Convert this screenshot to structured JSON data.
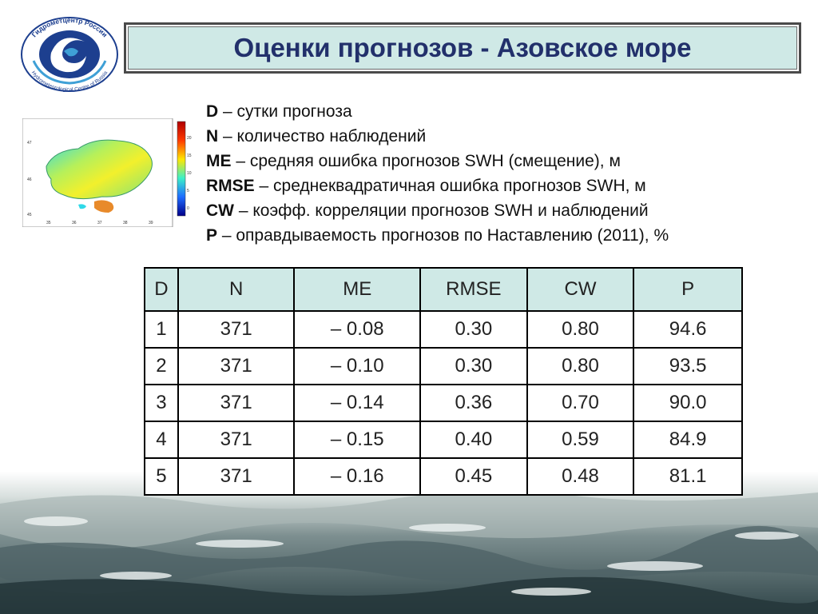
{
  "colors": {
    "title_text": "#22306b",
    "title_bg": "#cfe9e6",
    "header_bg": "#cfe9e6",
    "logo_blue": "#1d3f8f"
  },
  "logo": {
    "text_top": "Гидрометцентр России",
    "text_bottom": "Hydrometeorological Centre of Russia"
  },
  "title": "Оценки прогнозов - Азовское море",
  "legend": [
    {
      "key": "D",
      "text": " – сутки прогноза"
    },
    {
      "key": "N",
      "text": " – количество наблюдений"
    },
    {
      "key": "ME",
      "text": " – средняя ошибка прогнозов SWH (смещение), м"
    },
    {
      "key": "RMSE",
      "text": " – среднеквадратичная ошибка прогнозов SWH, м"
    },
    {
      "key": "CW",
      "text": " – коэфф. корреляции прогнозов SWH и наблюдений"
    },
    {
      "key": "P",
      "text": " –  оправдываемость прогнозов по Наставлению (2011), %"
    }
  ],
  "map": {
    "colorbar_ticks": [
      "20",
      "15",
      "10",
      "5",
      "0"
    ],
    "lat_labels": [
      "47",
      "46",
      "45"
    ],
    "lon_labels": [
      "35",
      "36",
      "37",
      "38",
      "39"
    ]
  },
  "table": {
    "headers": [
      "D",
      "N",
      "ME",
      "RMSE",
      "CW",
      "P"
    ],
    "rows": [
      [
        "1",
        "371",
        "– 0.08",
        "0.30",
        "0.80",
        "94.6"
      ],
      [
        "2",
        "371",
        "– 0.10",
        "0.30",
        "0.80",
        "93.5"
      ],
      [
        "3",
        "371",
        "– 0.14",
        "0.36",
        "0.70",
        "90.0"
      ],
      [
        "4",
        "371",
        "– 0.15",
        "0.40",
        "0.59",
        "84.9"
      ],
      [
        "5",
        "371",
        "– 0.16",
        "0.45",
        "0.48",
        "81.1"
      ]
    ]
  }
}
